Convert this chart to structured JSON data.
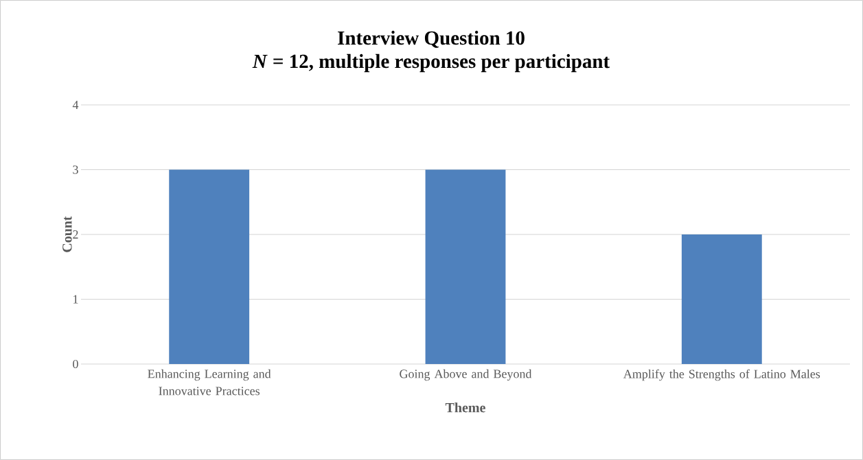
{
  "chart_data": {
    "type": "bar",
    "title": "Interview Question 10",
    "subtitle": "*N* = 12, multiple responses per participant",
    "xlabel": "Theme",
    "ylabel": "Count",
    "categories": [
      "Enhancing Learning and Innovative Practices",
      "Going Above and Beyond",
      "Amplify the Strengths of Latino Males"
    ],
    "values": [
      3,
      3,
      2
    ],
    "color": "#4f81bd",
    "ylim": [
      0,
      4
    ],
    "yticks": [
      0,
      1,
      2,
      3,
      4
    ],
    "grid": "y"
  }
}
